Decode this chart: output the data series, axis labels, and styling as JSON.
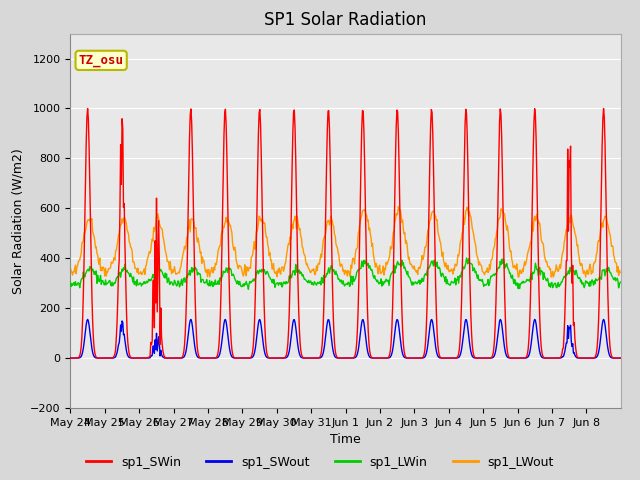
{
  "title": "SP1 Solar Radiation",
  "xlabel": "Time",
  "ylabel": "Solar Radiation (W/m2)",
  "ylim": [
    -200,
    1300
  ],
  "yticks": [
    -200,
    0,
    200,
    400,
    600,
    800,
    1000,
    1200
  ],
  "xtick_labels": [
    "May 24",
    "May 25",
    "May 26",
    "May 27",
    "May 28",
    "May 29",
    "May 30",
    "May 31",
    "Jun 1",
    "Jun 2",
    "Jun 3",
    "Jun 4",
    "Jun 5",
    "Jun 6",
    "Jun 7",
    "Jun 8"
  ],
  "annotation_text": "TZ_osu",
  "annotation_color": "#cc0000",
  "annotation_bg": "#ffffcc",
  "annotation_border": "#b8b800",
  "colors": {
    "sp1_SWin": "#ff0000",
    "sp1_SWout": "#0000ee",
    "sp1_LWin": "#00cc00",
    "sp1_LWout": "#ff9900"
  },
  "legend_labels": [
    "sp1_SWin",
    "sp1_SWout",
    "sp1_LWin",
    "sp1_LWout"
  ],
  "bg_color": "#d8d8d8",
  "plot_bg": "#e8e8e8",
  "grid_color": "#ffffff",
  "title_fontsize": 12,
  "axis_fontsize": 9,
  "tick_fontsize": 8,
  "figwidth": 6.4,
  "figheight": 4.8,
  "dpi": 100
}
